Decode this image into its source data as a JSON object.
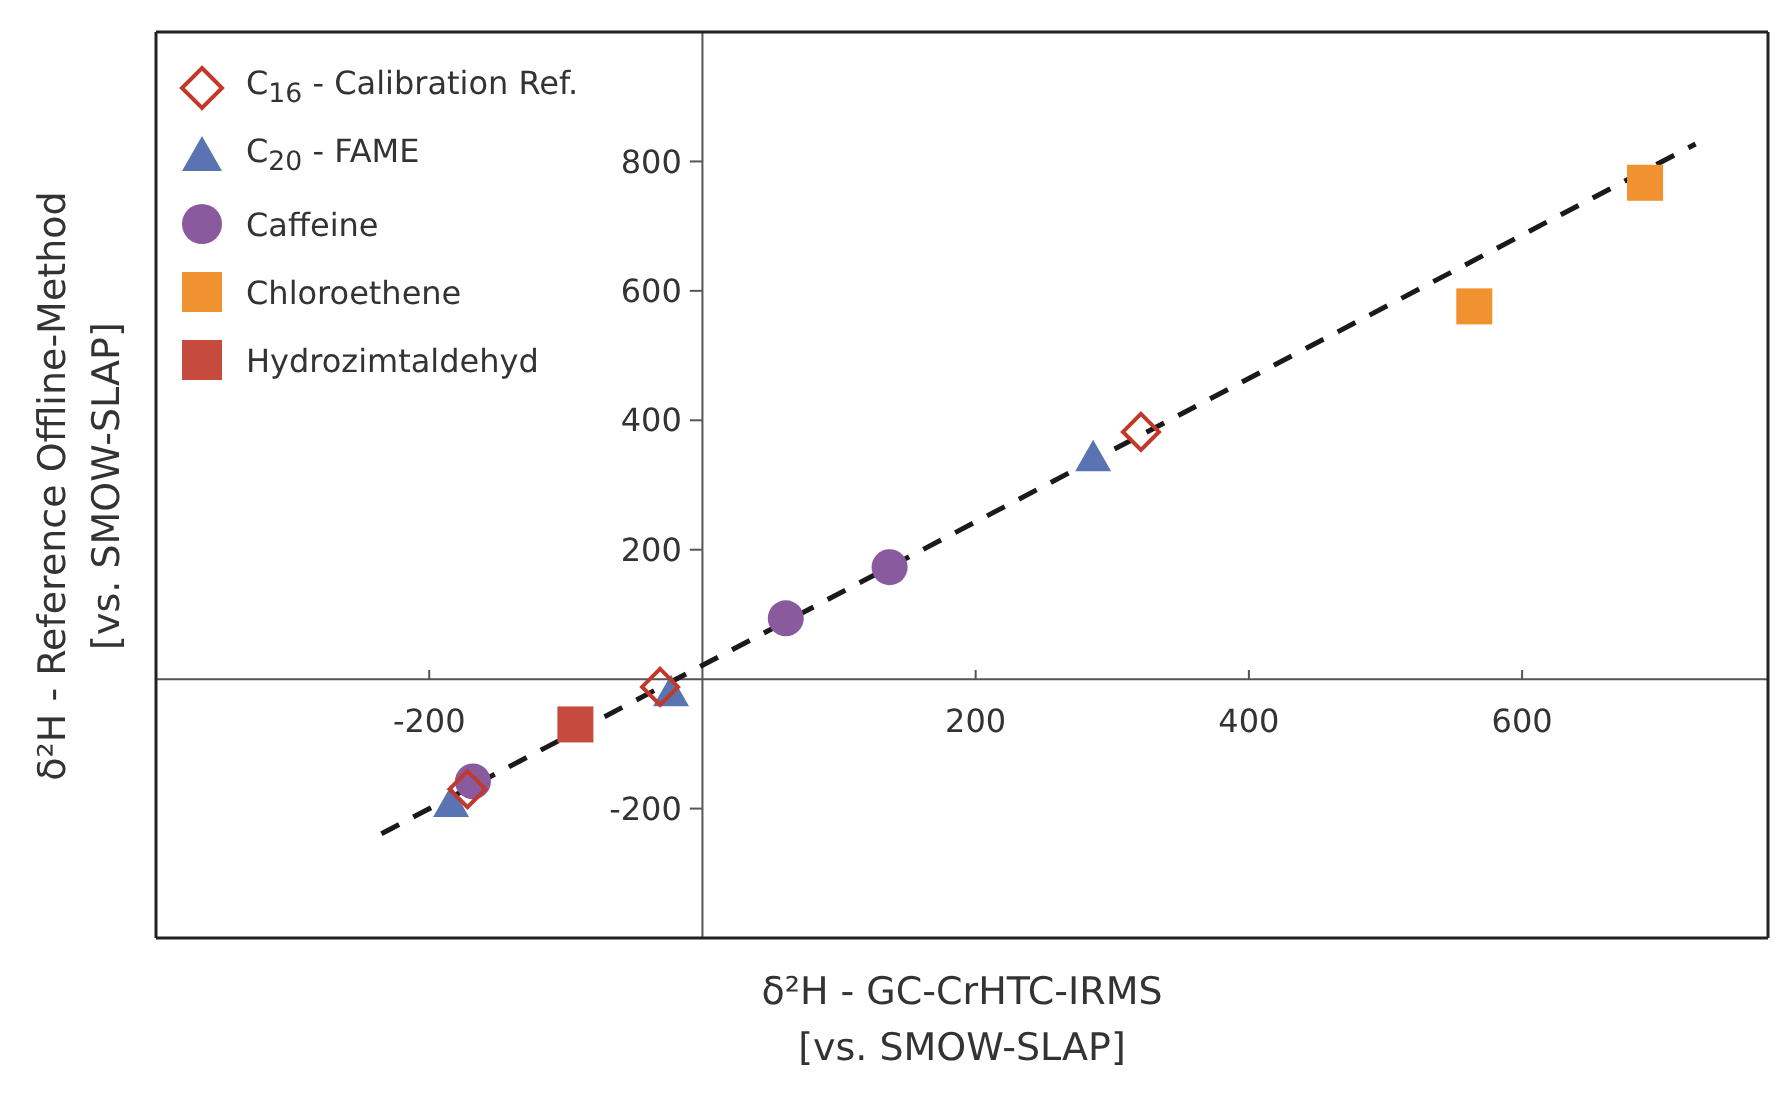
{
  "chart_data": {
    "type": "scatter",
    "xlabel": "δ²H - GC-CrHTC-IRMS\n[vs. SMOW-SLAP]",
    "ylabel": "δ²H - Reference Offline-Method\n[vs. SMOW-SLAP]",
    "xlim": [
      -400,
      780
    ],
    "ylim": [
      -400,
      1000
    ],
    "xticks": [
      -200,
      200,
      400,
      600
    ],
    "yticks": [
      -200,
      200,
      400,
      600,
      800
    ],
    "grid": false,
    "legend": "top left",
    "series": [
      {
        "type": "line",
        "color": "#1a1a1a",
        "line_style": "dashed",
        "marker": "none",
        "x": [
          -235,
          727
        ],
        "values": [
          -239,
          827
        ]
      },
      {
        "name": "C$_{16}$ - Calibration Ref.",
        "color": "#c0392b",
        "marker": "diamond",
        "x": [
          -172,
          -31,
          321
        ],
        "values": [
          -170,
          -12,
          382
        ]
      },
      {
        "name": "C$_{20}$ - FAME",
        "color": "#5a74b3",
        "marker": "triangle",
        "x": [
          -184,
          -23,
          286
        ],
        "values": [
          -192,
          -21,
          342
        ]
      },
      {
        "name": "Caffeine",
        "color": "#8a5a9f",
        "marker": "circle",
        "x": [
          -168,
          61,
          137
        ],
        "values": [
          -158,
          94,
          173
        ]
      },
      {
        "name": "Chloroethene",
        "color": "#f0922f",
        "marker": "square",
        "x": [
          565,
          690
        ],
        "values": [
          576,
          767
        ]
      },
      {
        "name": "Hydrozimtaldehyd",
        "color": "#c64a3e",
        "marker": "square",
        "x": [
          -93
        ],
        "values": [
          -70
        ]
      }
    ]
  }
}
